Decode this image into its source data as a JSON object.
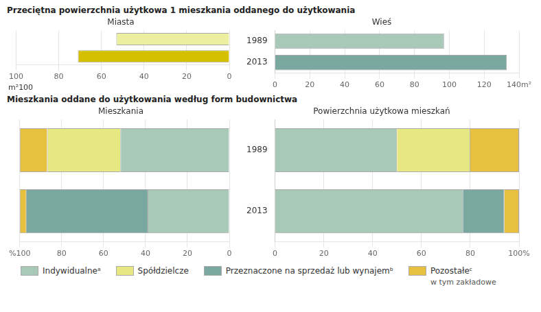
{
  "chart_data": [
    {
      "type": "bar",
      "title": "Przeciętna powierzchnia użytkowa 1 mieszkania oddanego do użytkowania",
      "subtitle": "Miasta",
      "orientation": "horizontal",
      "categories": [
        "1989",
        "2013"
      ],
      "values": [
        53,
        71
      ],
      "colors": [
        "#eceea0",
        "#d4c000"
      ],
      "xlim": [
        100,
        0
      ],
      "xticks": [
        100,
        80,
        60,
        40,
        20,
        0
      ],
      "grid": true,
      "tick_labels": "x",
      "annotations": [
        "m²100"
      ]
    },
    {
      "type": "bar",
      "subtitle": "Wieś",
      "orientation": "horizontal",
      "categories": [
        "1989",
        "2013"
      ],
      "values": [
        97,
        133
      ],
      "colors": [
        "#a8c8b8",
        "#7aA8A0"
      ],
      "xlim": [
        0,
        140
      ],
      "xticks": [
        0,
        20,
        40,
        60,
        80,
        100,
        120,
        {
          "value": 140,
          "label": "140m²"
        }
      ],
      "grid": true
    },
    {
      "type": "bar",
      "title": "Mieszkania oddane do użytkowania według form budownictwa",
      "subtitle": "Mieszkania",
      "orientation": "horizontal",
      "stacked": true,
      "categories": [
        "1989",
        "2013"
      ],
      "series": [
        {
          "name": "Indywidualneᵃ",
          "color": "#a8c8b8",
          "values": [
            52,
            39
          ]
        },
        {
          "name": "Spółdzielcze",
          "color": "#e8e882",
          "values": [
            35,
            null
          ]
        },
        {
          "name": "Przeznaczone na sprzedaż lub wynajemᵇ",
          "color": "#7aA8A0",
          "values": [
            null,
            58
          ]
        },
        {
          "name": "Pozostałeᶜ",
          "color": "#e8c040",
          "values": [
            13,
            3
          ]
        }
      ],
      "xlim": [
        100,
        0
      ],
      "xticks": [
        {
          "value": 100,
          "label": "%100"
        },
        80,
        60,
        40,
        20,
        0
      ],
      "grid": true,
      "tick_labels": "x",
      "legend": "bottom",
      "annotations": [
        "w tym zakładowe"
      ]
    },
    {
      "type": "bar",
      "subtitle": "Powierzchnia użytkowa mieszkań",
      "orientation": "horizontal",
      "stacked": true,
      "categories": [
        "1989",
        "2013"
      ],
      "series": [
        {
          "name": "Indywidualneᵃ",
          "color": "#a8c8b8",
          "values": [
            50,
            77
          ]
        },
        {
          "name": "Spółdzielcze",
          "color": "#e8e882",
          "values": [
            30,
            null
          ]
        },
        {
          "name": "Przeznaczone na sprzedaż lub wynajemᵇ",
          "color": "#7aA8A0",
          "values": [
            null,
            17
          ]
        },
        {
          "name": "Pozostałeᶜ",
          "color": "#e8c040",
          "values": [
            20,
            6
          ]
        }
      ],
      "xlim": [
        0,
        100
      ],
      "xticks": [
        0,
        20,
        40,
        60,
        80,
        {
          "value": 100,
          "label": "100%"
        }
      ],
      "grid": true
    }
  ]
}
